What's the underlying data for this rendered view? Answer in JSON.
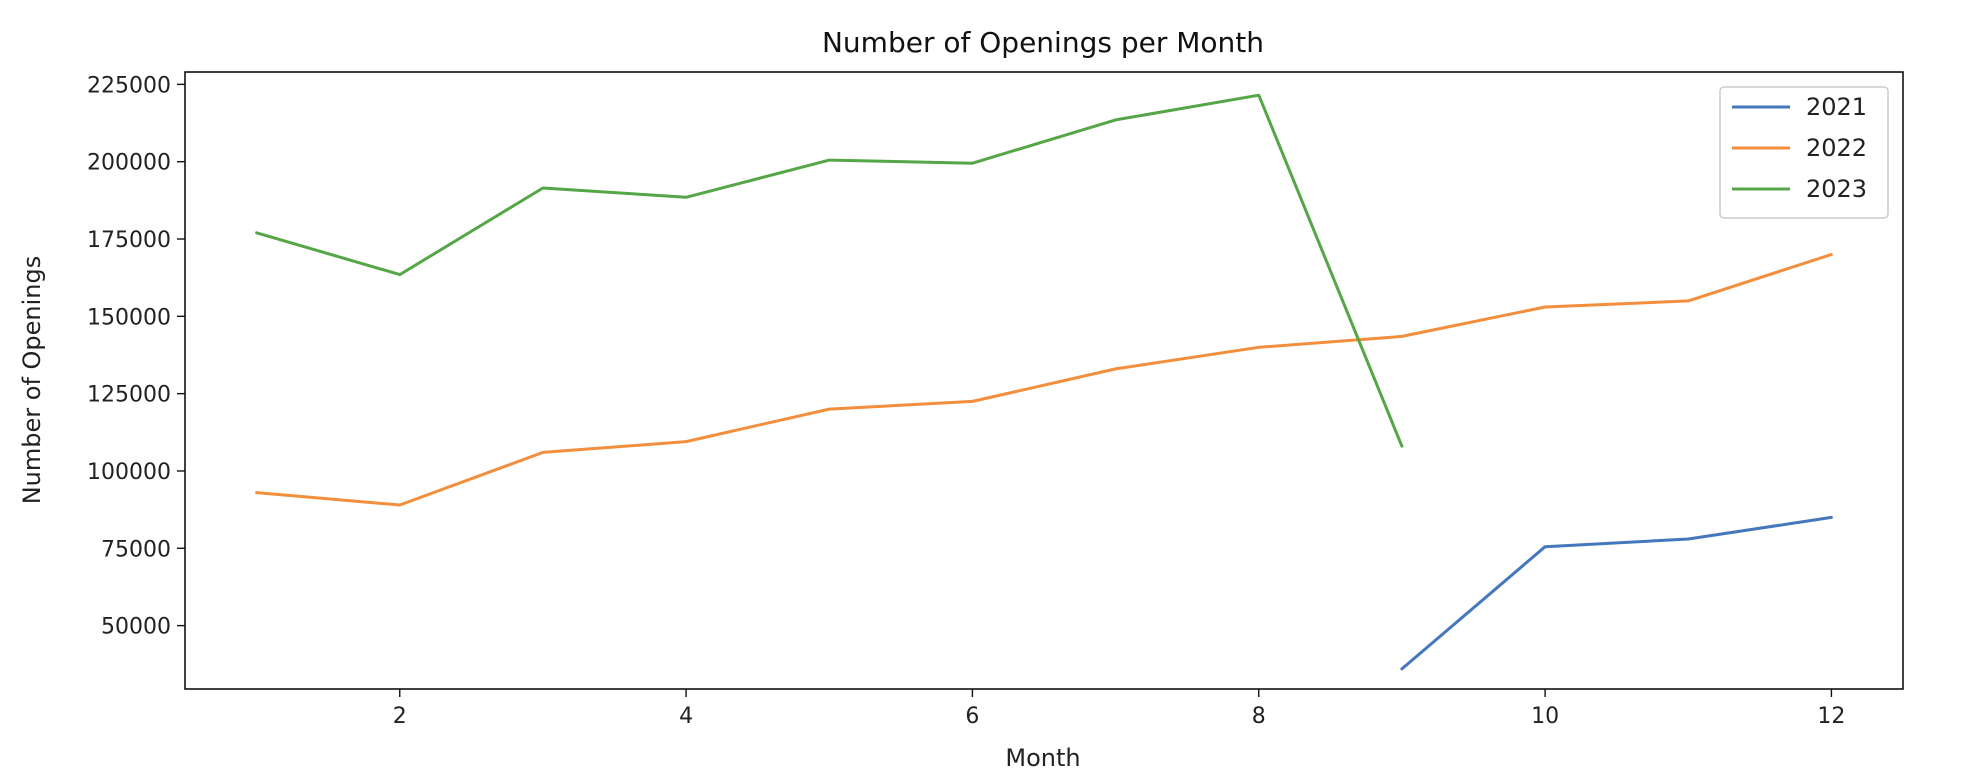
{
  "chart_data": {
    "type": "line",
    "title": "Number of Openings per Month",
    "xlabel": "Month",
    "ylabel": "Number of Openings",
    "xlim": [
      0.5,
      12.5
    ],
    "ylim": [
      29500,
      229000
    ],
    "xticks": [
      2,
      4,
      6,
      8,
      10,
      12
    ],
    "yticks": [
      50000,
      75000,
      100000,
      125000,
      150000,
      175000,
      200000,
      225000
    ],
    "grid": false,
    "legend_position": "top-right",
    "series": [
      {
        "name": "2021",
        "color": "#4477bb",
        "x": [
          9,
          10,
          11,
          12
        ],
        "y": [
          36000,
          75500,
          78000,
          85000
        ]
      },
      {
        "name": "2022",
        "color": "#f28e3c",
        "x": [
          1,
          2,
          3,
          4,
          5,
          6,
          7,
          8,
          9,
          10,
          11,
          12
        ],
        "y": [
          93000,
          89000,
          106000,
          109500,
          120000,
          122500,
          133000,
          140000,
          143500,
          153000,
          155000,
          170000
        ]
      },
      {
        "name": "2023",
        "color": "#55a646",
        "x": [
          1,
          2,
          3,
          4,
          5,
          6,
          7,
          8,
          9
        ],
        "y": [
          177000,
          163500,
          191500,
          188500,
          200500,
          199500,
          213500,
          221500,
          108000
        ]
      }
    ]
  }
}
